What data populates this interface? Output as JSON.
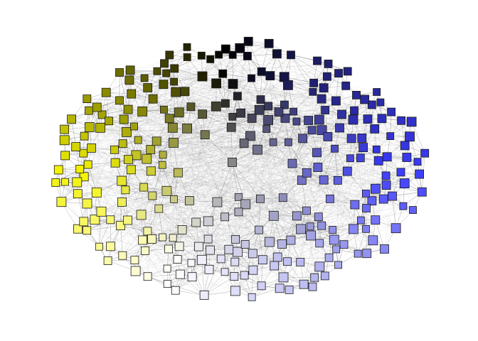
{
  "figure": {
    "type": "network-graph",
    "layout": "force-directed",
    "background": "#ffffff",
    "node_shape": "square",
    "node_labels_legible": false,
    "edge_color": "#333333",
    "color_gradient": [
      {
        "name": "yellow",
        "color": "#f2f200"
      },
      {
        "name": "olive",
        "color": "#8a8a00"
      },
      {
        "name": "black",
        "color": "#000000"
      },
      {
        "name": "gray",
        "color": "#8c8c99"
      },
      {
        "name": "white",
        "color": "#ffffff"
      },
      {
        "name": "lavender",
        "color": "#aaaaee"
      },
      {
        "name": "blue",
        "color": "#3b3bff"
      },
      {
        "name": "navy",
        "color": "#202070"
      }
    ]
  }
}
